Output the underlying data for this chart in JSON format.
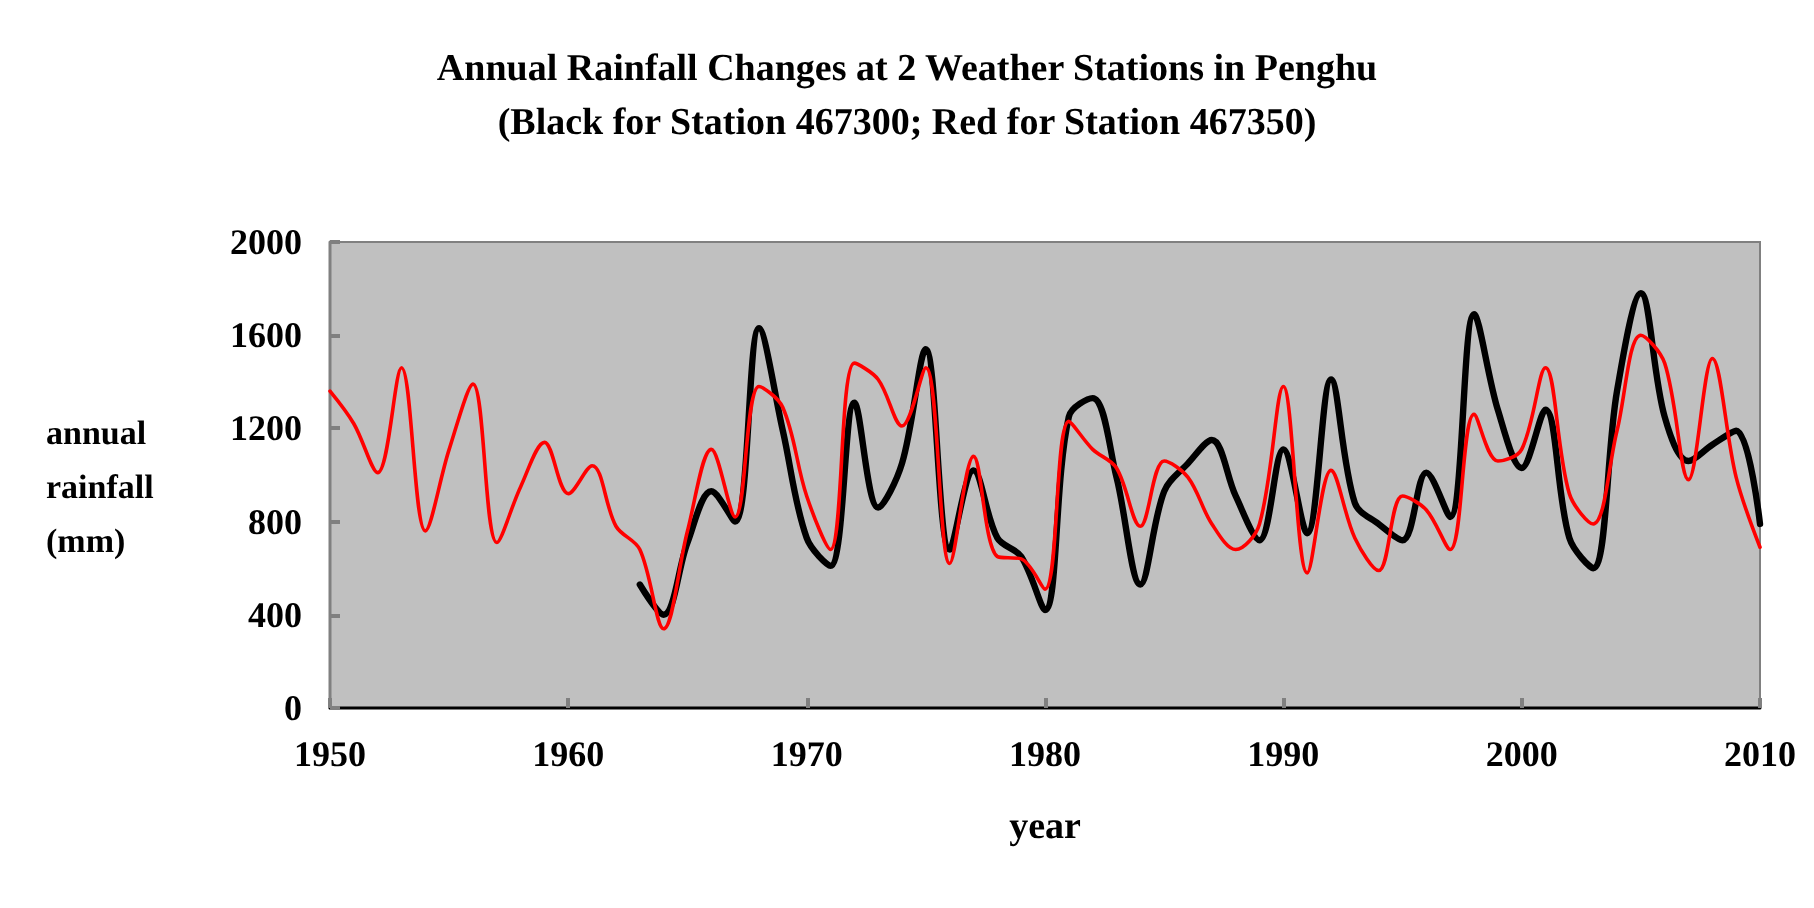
{
  "chart_data": {
    "type": "line",
    "title": "Annual Rainfall Changes at 2 Weather Stations in Penghu",
    "subtitle": "(Black for Station 467300; Red for Station 467350)",
    "xlabel": "year",
    "ylabel": "annual rainfall (mm)",
    "xlim": [
      1950,
      2010
    ],
    "xticks": [
      1950,
      1960,
      1970,
      1980,
      1990,
      2000,
      2010
    ],
    "ylim": [
      0,
      2000
    ],
    "yticks": [
      0,
      400,
      800,
      1200,
      1600,
      2000
    ],
    "grid": false,
    "marker": "none",
    "line_style": "solid",
    "series": [
      {
        "color": "#ff0000",
        "x": [
          1950,
          1951,
          1952,
          1953,
          1954,
          1955,
          1956,
          1957,
          1958,
          1959,
          1960,
          1961,
          1962,
          1963,
          1964,
          1965,
          1966,
          1967,
          1968,
          1969,
          1970,
          1971,
          1972,
          1973,
          1974,
          1975,
          1976,
          1977,
          1978,
          1979,
          1980,
          1981,
          1982,
          1983,
          1984,
          1985,
          1986,
          1987,
          1988,
          1989,
          1990,
          1991,
          1992,
          1993,
          1994,
          1995,
          1996,
          1997,
          1998,
          1999,
          2000,
          2001,
          2002,
          2003,
          2004,
          2005,
          2006,
          2007,
          2008,
          2009,
          2010
        ],
        "values": [
          1360,
          1220,
          1010,
          1460,
          760,
          1110,
          1390,
          710,
          950,
          1140,
          920,
          1040,
          780,
          680,
          340,
          760,
          1110,
          820,
          1380,
          1290,
          910,
          680,
          1480,
          1410,
          1210,
          1460,
          620,
          1080,
          650,
          640,
          510,
          1230,
          1110,
          1030,
          780,
          1060,
          990,
          790,
          680,
          790,
          1380,
          580,
          1020,
          730,
          590,
          910,
          850,
          680,
          1260,
          1060,
          1110,
          1460,
          920,
          790,
          1190,
          1600,
          1480,
          980,
          1500,
          990,
          690
        ]
      },
      {
        "color": "#000000",
        "x": [
          1963,
          1964,
          1965,
          1966,
          1967,
          1968,
          1969,
          1970,
          1971,
          1972,
          1973,
          1974,
          1975,
          1976,
          1977,
          1978,
          1979,
          1980,
          1981,
          1982,
          1983,
          1984,
          1985,
          1986,
          1987,
          1988,
          1989,
          1990,
          1991,
          1992,
          1993,
          1994,
          1995,
          1996,
          1997,
          1998,
          1999,
          2000,
          2001,
          2002,
          2003,
          2004,
          2005,
          2006,
          2007,
          2008,
          2009,
          2010
        ],
        "values": [
          530,
          400,
          710,
          930,
          800,
          1630,
          1190,
          730,
          610,
          1310,
          860,
          1050,
          1540,
          680,
          1020,
          730,
          650,
          420,
          1250,
          1330,
          990,
          530,
          930,
          1050,
          1150,
          910,
          720,
          1110,
          750,
          1410,
          880,
          790,
          720,
          1010,
          820,
          1690,
          1280,
          1030,
          1280,
          730,
          600,
          1360,
          1780,
          1250,
          1060,
          1130,
          1190,
          790
        ]
      }
    ]
  }
}
